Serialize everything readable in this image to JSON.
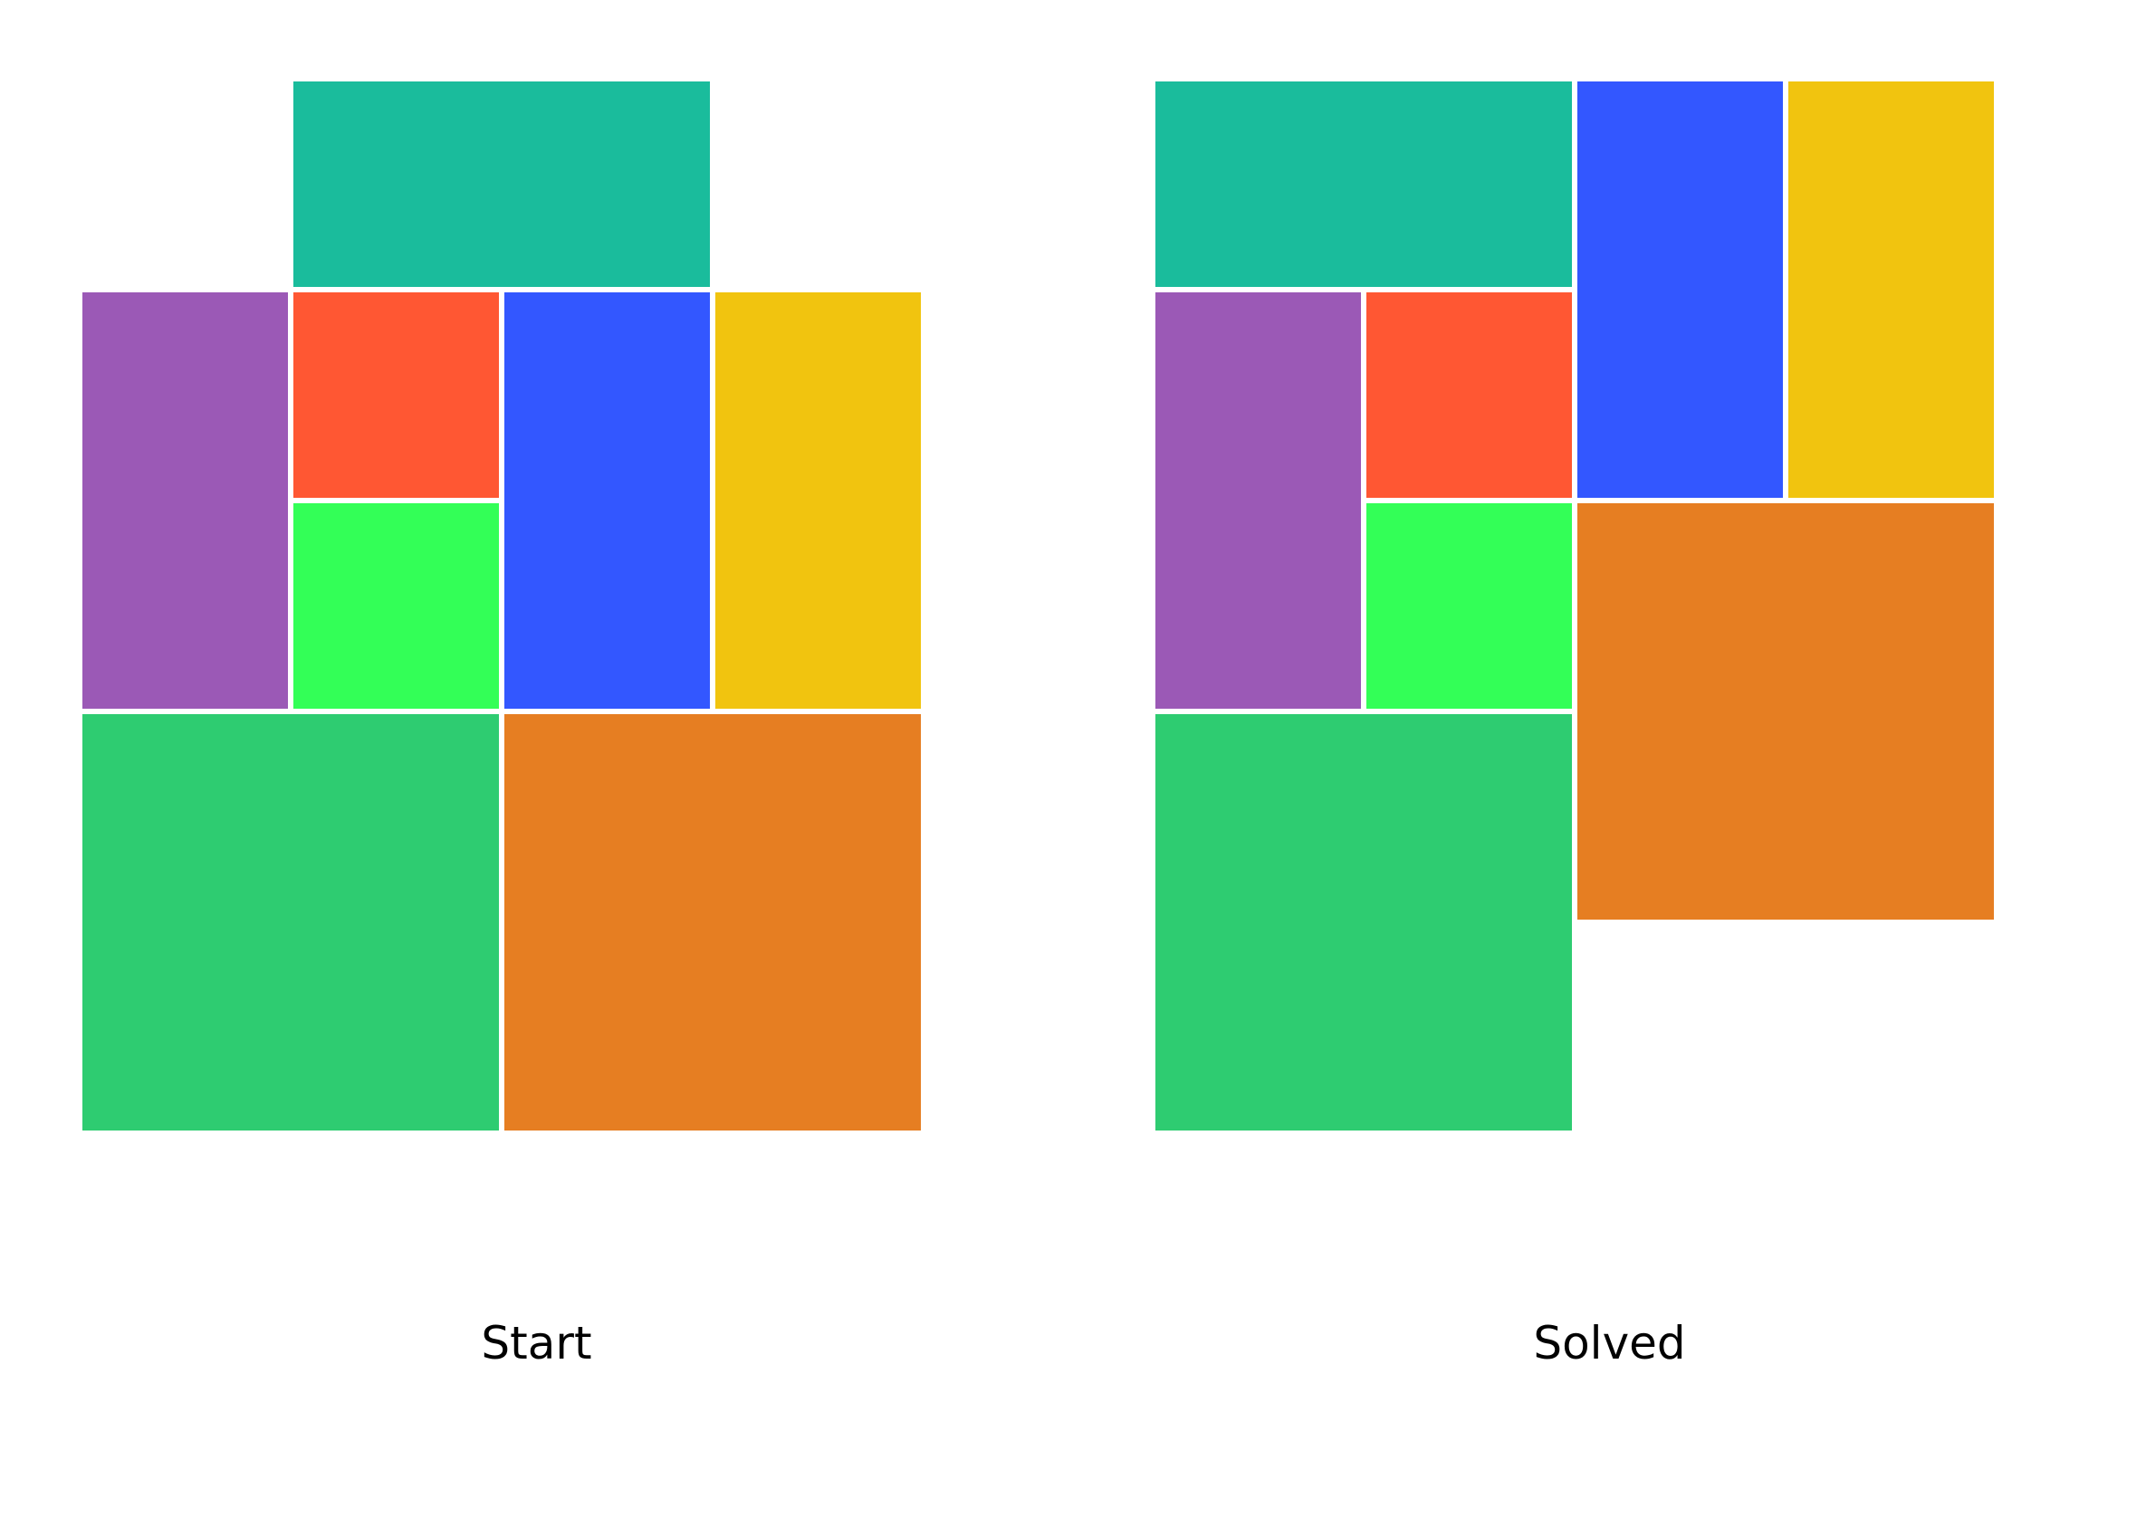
{
  "colors": {
    "background": "#ffffff",
    "teal": "#1abc9c",
    "purple": "#9b59b6",
    "red": "#ff5733",
    "light_green": "#33ff57",
    "blue": "#3357ff",
    "yellow": "#f1c40f",
    "green": "#2ecc71",
    "orange": "#e67e22"
  },
  "boards": [
    {
      "label": "Start",
      "blocks": [
        {
          "name": "teal-block",
          "color": "teal",
          "col": 1,
          "row": 0,
          "w": 2,
          "h": 1
        },
        {
          "name": "purple-block",
          "color": "purple",
          "col": 0,
          "row": 1,
          "w": 1,
          "h": 2
        },
        {
          "name": "red-block",
          "color": "red",
          "col": 1,
          "row": 1,
          "w": 1,
          "h": 1
        },
        {
          "name": "light-green-block",
          "color": "light_green",
          "col": 1,
          "row": 2,
          "w": 1,
          "h": 1
        },
        {
          "name": "blue-block",
          "color": "blue",
          "col": 2,
          "row": 1,
          "w": 1,
          "h": 2
        },
        {
          "name": "yellow-block",
          "color": "yellow",
          "col": 3,
          "row": 1,
          "w": 1,
          "h": 2
        },
        {
          "name": "green-block",
          "color": "green",
          "col": 0,
          "row": 3,
          "w": 2,
          "h": 2
        },
        {
          "name": "orange-block",
          "color": "orange",
          "col": 2,
          "row": 3,
          "w": 2,
          "h": 2
        }
      ]
    },
    {
      "label": "Solved",
      "blocks": [
        {
          "name": "teal-block",
          "color": "teal",
          "col": 0,
          "row": 0,
          "w": 2,
          "h": 1
        },
        {
          "name": "blue-block",
          "color": "blue",
          "col": 2,
          "row": 0,
          "w": 1,
          "h": 2
        },
        {
          "name": "yellow-block",
          "color": "yellow",
          "col": 3,
          "row": 0,
          "w": 1,
          "h": 2
        },
        {
          "name": "purple-block",
          "color": "purple",
          "col": 0,
          "row": 1,
          "w": 1,
          "h": 2
        },
        {
          "name": "red-block",
          "color": "red",
          "col": 1,
          "row": 1,
          "w": 1,
          "h": 1
        },
        {
          "name": "light-green-block",
          "color": "light_green",
          "col": 1,
          "row": 2,
          "w": 1,
          "h": 1
        },
        {
          "name": "orange-block",
          "color": "orange",
          "col": 2,
          "row": 2,
          "w": 2,
          "h": 2
        },
        {
          "name": "green-block",
          "color": "green",
          "col": 0,
          "row": 3,
          "w": 2,
          "h": 2
        }
      ]
    }
  ]
}
